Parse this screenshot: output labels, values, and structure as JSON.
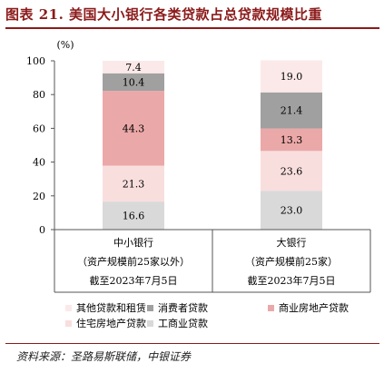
{
  "figure": {
    "title": "图表 21. 美国大小银行各类贷款占总贷款规模比重",
    "source": "资料来源：圣路易斯联储，中银证券"
  },
  "chart_data": {
    "type": "bar",
    "stacked": true,
    "ylabel": "(%)",
    "ylim": [
      0,
      100
    ],
    "yticks": [
      0,
      20,
      40,
      60,
      80,
      100
    ],
    "grid": false,
    "legend_position": "bottom",
    "categories": [
      [
        "中小银行",
        "（资产规模前25家以外）",
        "截至2023年7月5日"
      ],
      [
        "大银行",
        "（资产规模前25家）",
        "截至2023年7月5日"
      ]
    ],
    "series": [
      {
        "name": "工商业贷款",
        "color": "#d9d9d9",
        "values": [
          16.6,
          23.0
        ]
      },
      {
        "name": "住宅房地产贷款",
        "color": "#f9dede",
        "values": [
          21.3,
          23.6
        ]
      },
      {
        "name": "商业房地产贷款",
        "color": "#eba8a8",
        "values": [
          44.3,
          13.3
        ]
      },
      {
        "name": "消费者贷款",
        "color": "#a0a0a0",
        "values": [
          10.4,
          21.4
        ]
      },
      {
        "name": "其他贷款和租赁",
        "color": "#fbe9e9",
        "values": [
          7.4,
          19.0
        ]
      }
    ],
    "legend_order": [
      "其他贷款和租赁",
      "消费者贷款",
      "商业房地产贷款",
      "住宅房地产贷款",
      "工商业贷款"
    ]
  }
}
